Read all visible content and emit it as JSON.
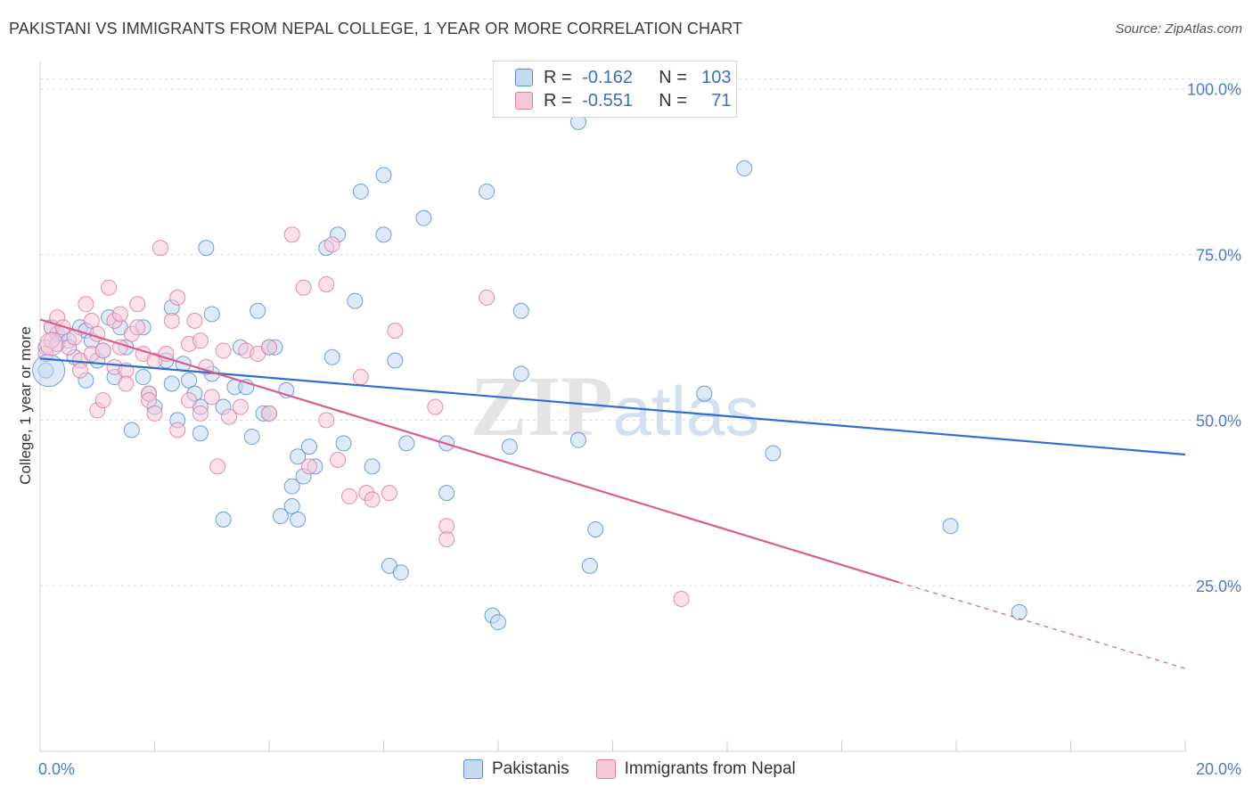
{
  "title": "PAKISTANI VS IMMIGRANTS FROM NEPAL COLLEGE, 1 YEAR OR MORE CORRELATION CHART",
  "source": "Source: ZipAtlas.com",
  "watermark": "ZIPatlas",
  "legend": {
    "rows": [
      {
        "r_label": "R =",
        "r_value": "-0.162",
        "n_label": "N =",
        "n_value": "103",
        "color": "#5b8fd6",
        "fill": "#c5d9f2"
      },
      {
        "r_label": "R =",
        "r_value": "-0.551",
        "n_label": "N =",
        "n_value": "71",
        "color": "#e07ba0",
        "fill": "#f6c9d8"
      }
    ]
  },
  "chart_data": {
    "type": "scatter",
    "xlabel": "",
    "ylabel": "College, 1 year or more",
    "xlim": [
      0,
      20
    ],
    "ylim": [
      0,
      104
    ],
    "x_ticks": [
      "0.0%",
      "20.0%"
    ],
    "y_ticks": [
      "25.0%",
      "50.0%",
      "75.0%",
      "100.0%"
    ],
    "grid": true,
    "legend_position": "bottom",
    "series": [
      {
        "name": "Pakistanis",
        "color": "#5b8fd6",
        "fill": "#c5d9f2",
        "trend": {
          "x0": 0,
          "y0": 59.3,
          "x1": 20,
          "y1": 44.8
        },
        "points": [
          [
            0.1,
            57.5
          ],
          [
            0.1,
            61
          ],
          [
            0.2,
            64
          ],
          [
            0.3,
            63
          ],
          [
            0.3,
            61.5
          ],
          [
            0.4,
            63
          ],
          [
            0.5,
            62
          ],
          [
            0.6,
            59.5
          ],
          [
            0.7,
            64
          ],
          [
            0.8,
            63.5
          ],
          [
            0.8,
            56
          ],
          [
            0.9,
            62
          ],
          [
            1.0,
            59
          ],
          [
            1.1,
            60.5
          ],
          [
            1.2,
            65.5
          ],
          [
            1.3,
            56.5
          ],
          [
            1.4,
            64
          ],
          [
            1.5,
            61
          ],
          [
            1.6,
            48.5
          ],
          [
            1.8,
            64
          ],
          [
            1.8,
            56.5
          ],
          [
            1.9,
            54
          ],
          [
            2.0,
            52
          ],
          [
            2.2,
            59
          ],
          [
            2.3,
            67
          ],
          [
            2.3,
            55.5
          ],
          [
            2.4,
            50
          ],
          [
            2.5,
            58.5
          ],
          [
            2.6,
            56
          ],
          [
            2.7,
            54
          ],
          [
            2.8,
            52
          ],
          [
            2.8,
            48
          ],
          [
            2.9,
            76
          ],
          [
            3.0,
            66
          ],
          [
            3.0,
            57
          ],
          [
            3.2,
            52
          ],
          [
            3.2,
            35
          ],
          [
            3.4,
            55
          ],
          [
            3.5,
            61
          ],
          [
            3.6,
            55
          ],
          [
            3.7,
            47.5
          ],
          [
            3.8,
            66.5
          ],
          [
            3.9,
            51
          ],
          [
            4.0,
            51
          ],
          [
            4.0,
            61
          ],
          [
            4.1,
            61
          ],
          [
            4.2,
            35.5
          ],
          [
            4.3,
            54.5
          ],
          [
            4.4,
            40
          ],
          [
            4.4,
            37
          ],
          [
            4.5,
            44.5
          ],
          [
            4.5,
            35
          ],
          [
            4.6,
            41.5
          ],
          [
            4.7,
            46
          ],
          [
            4.8,
            43
          ],
          [
            5.0,
            76
          ],
          [
            5.1,
            59.5
          ],
          [
            5.2,
            78
          ],
          [
            5.3,
            46.5
          ],
          [
            5.5,
            68
          ],
          [
            5.6,
            84.5
          ],
          [
            5.8,
            43
          ],
          [
            6.0,
            78
          ],
          [
            6.0,
            87
          ],
          [
            6.1,
            28
          ],
          [
            6.2,
            59
          ],
          [
            6.3,
            27
          ],
          [
            6.4,
            46.5
          ],
          [
            6.7,
            80.5
          ],
          [
            7.1,
            39
          ],
          [
            7.1,
            46.5
          ],
          [
            7.8,
            84.5
          ],
          [
            7.9,
            20.5
          ],
          [
            8.0,
            19.5
          ],
          [
            8.2,
            46
          ],
          [
            8.4,
            57
          ],
          [
            8.4,
            66.5
          ],
          [
            9.4,
            95
          ],
          [
            9.4,
            47
          ],
          [
            9.6,
            28
          ],
          [
            9.7,
            33.5
          ],
          [
            11.4,
            98
          ],
          [
            11.6,
            54
          ],
          [
            12.3,
            88
          ],
          [
            12.8,
            45
          ],
          [
            15.9,
            34
          ],
          [
            17.1,
            21
          ]
        ]
      },
      {
        "name": "Immigrants from Nepal",
        "color": "#e07ba0",
        "fill": "#f6c9d8",
        "trend": {
          "x0": 0,
          "y0": 65.2,
          "x1": 15.0,
          "y1": 25.5,
          "dash_x1": 20,
          "dash_y1": 12.5
        },
        "points": [
          [
            0.1,
            60
          ],
          [
            0.2,
            64
          ],
          [
            0.2,
            62
          ],
          [
            0.3,
            65.5
          ],
          [
            0.4,
            64
          ],
          [
            0.5,
            61
          ],
          [
            0.6,
            62.5
          ],
          [
            0.7,
            59
          ],
          [
            0.7,
            57.5
          ],
          [
            0.8,
            67.5
          ],
          [
            0.9,
            60
          ],
          [
            0.9,
            65
          ],
          [
            1.0,
            63
          ],
          [
            1.0,
            51.5
          ],
          [
            1.1,
            53
          ],
          [
            1.1,
            60.5
          ],
          [
            1.2,
            70
          ],
          [
            1.3,
            65
          ],
          [
            1.3,
            58
          ],
          [
            1.4,
            66
          ],
          [
            1.4,
            61
          ],
          [
            1.5,
            57.5
          ],
          [
            1.5,
            55.5
          ],
          [
            1.6,
            63
          ],
          [
            1.7,
            67.5
          ],
          [
            1.7,
            64
          ],
          [
            1.8,
            60
          ],
          [
            1.9,
            54
          ],
          [
            1.9,
            53
          ],
          [
            2.0,
            59
          ],
          [
            2.0,
            51
          ],
          [
            2.1,
            76
          ],
          [
            2.2,
            60
          ],
          [
            2.3,
            65
          ],
          [
            2.4,
            68.5
          ],
          [
            2.4,
            48.5
          ],
          [
            2.6,
            61.5
          ],
          [
            2.6,
            53
          ],
          [
            2.7,
            65
          ],
          [
            2.8,
            62
          ],
          [
            2.8,
            51
          ],
          [
            2.9,
            58
          ],
          [
            3.0,
            53.5
          ],
          [
            3.1,
            43
          ],
          [
            3.2,
            60.5
          ],
          [
            3.3,
            50.5
          ],
          [
            3.5,
            52
          ],
          [
            3.6,
            60.5
          ],
          [
            3.8,
            60
          ],
          [
            4.0,
            51
          ],
          [
            4.0,
            61
          ],
          [
            4.4,
            78
          ],
          [
            4.6,
            70
          ],
          [
            4.7,
            43
          ],
          [
            5.0,
            70.5
          ],
          [
            5.0,
            50
          ],
          [
            5.1,
            76.5
          ],
          [
            5.2,
            44
          ],
          [
            5.4,
            38.5
          ],
          [
            5.6,
            56.5
          ],
          [
            5.7,
            39
          ],
          [
            5.8,
            38
          ],
          [
            6.1,
            39
          ],
          [
            6.2,
            63.5
          ],
          [
            6.9,
            52
          ],
          [
            7.1,
            34
          ],
          [
            7.1,
            32
          ],
          [
            7.8,
            68.5
          ],
          [
            11.2,
            23
          ]
        ]
      }
    ]
  }
}
